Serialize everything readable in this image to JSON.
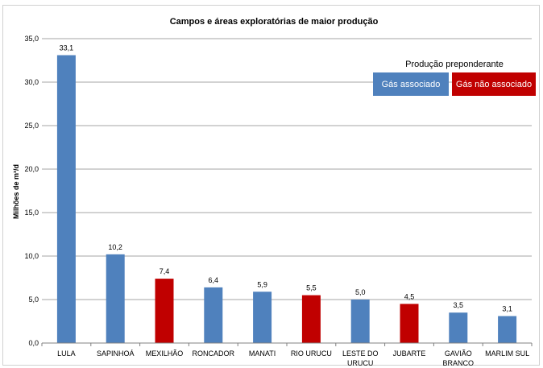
{
  "chart_data": {
    "type": "bar",
    "title": "Campos e áreas exploratórias de maior produção",
    "ylabel": "Milhões de m³/d",
    "xlabel": "",
    "ylim": [
      0,
      35
    ],
    "yticks": [
      "0,0",
      "5,0",
      "10,0",
      "15,0",
      "20,0",
      "25,0",
      "30,0",
      "35,0"
    ],
    "categories": [
      [
        "LULA"
      ],
      [
        "SAPINHOÁ"
      ],
      [
        "MEXILHÃO"
      ],
      [
        "RONCADOR"
      ],
      [
        "MANATI"
      ],
      [
        "RIO URUCU"
      ],
      [
        "LESTE DO",
        "URUCU"
      ],
      [
        "JUBARTE"
      ],
      [
        "GAVIÃO",
        "BRANCO"
      ],
      [
        "MARLIM SUL"
      ]
    ],
    "values": [
      33.1,
      10.2,
      7.4,
      6.4,
      5.9,
      5.5,
      5.0,
      4.5,
      3.5,
      3.1
    ],
    "value_labels": [
      "33,1",
      "10,2",
      "7,4",
      "6,4",
      "5,9",
      "5,5",
      "5,0",
      "4,5",
      "3,5",
      "3,1"
    ],
    "groups": [
      "associado",
      "associado",
      "nao_associado",
      "associado",
      "associado",
      "nao_associado",
      "associado",
      "nao_associado",
      "associado",
      "associado"
    ],
    "grid": true,
    "legend": {
      "title": "Produção preponderante",
      "placement": "top-right",
      "items": [
        {
          "key": "associado",
          "label": "Gás associado",
          "color": "#4f81bd"
        },
        {
          "key": "nao_associado",
          "label": "Gás não associado",
          "color": "#c00000"
        }
      ]
    }
  }
}
